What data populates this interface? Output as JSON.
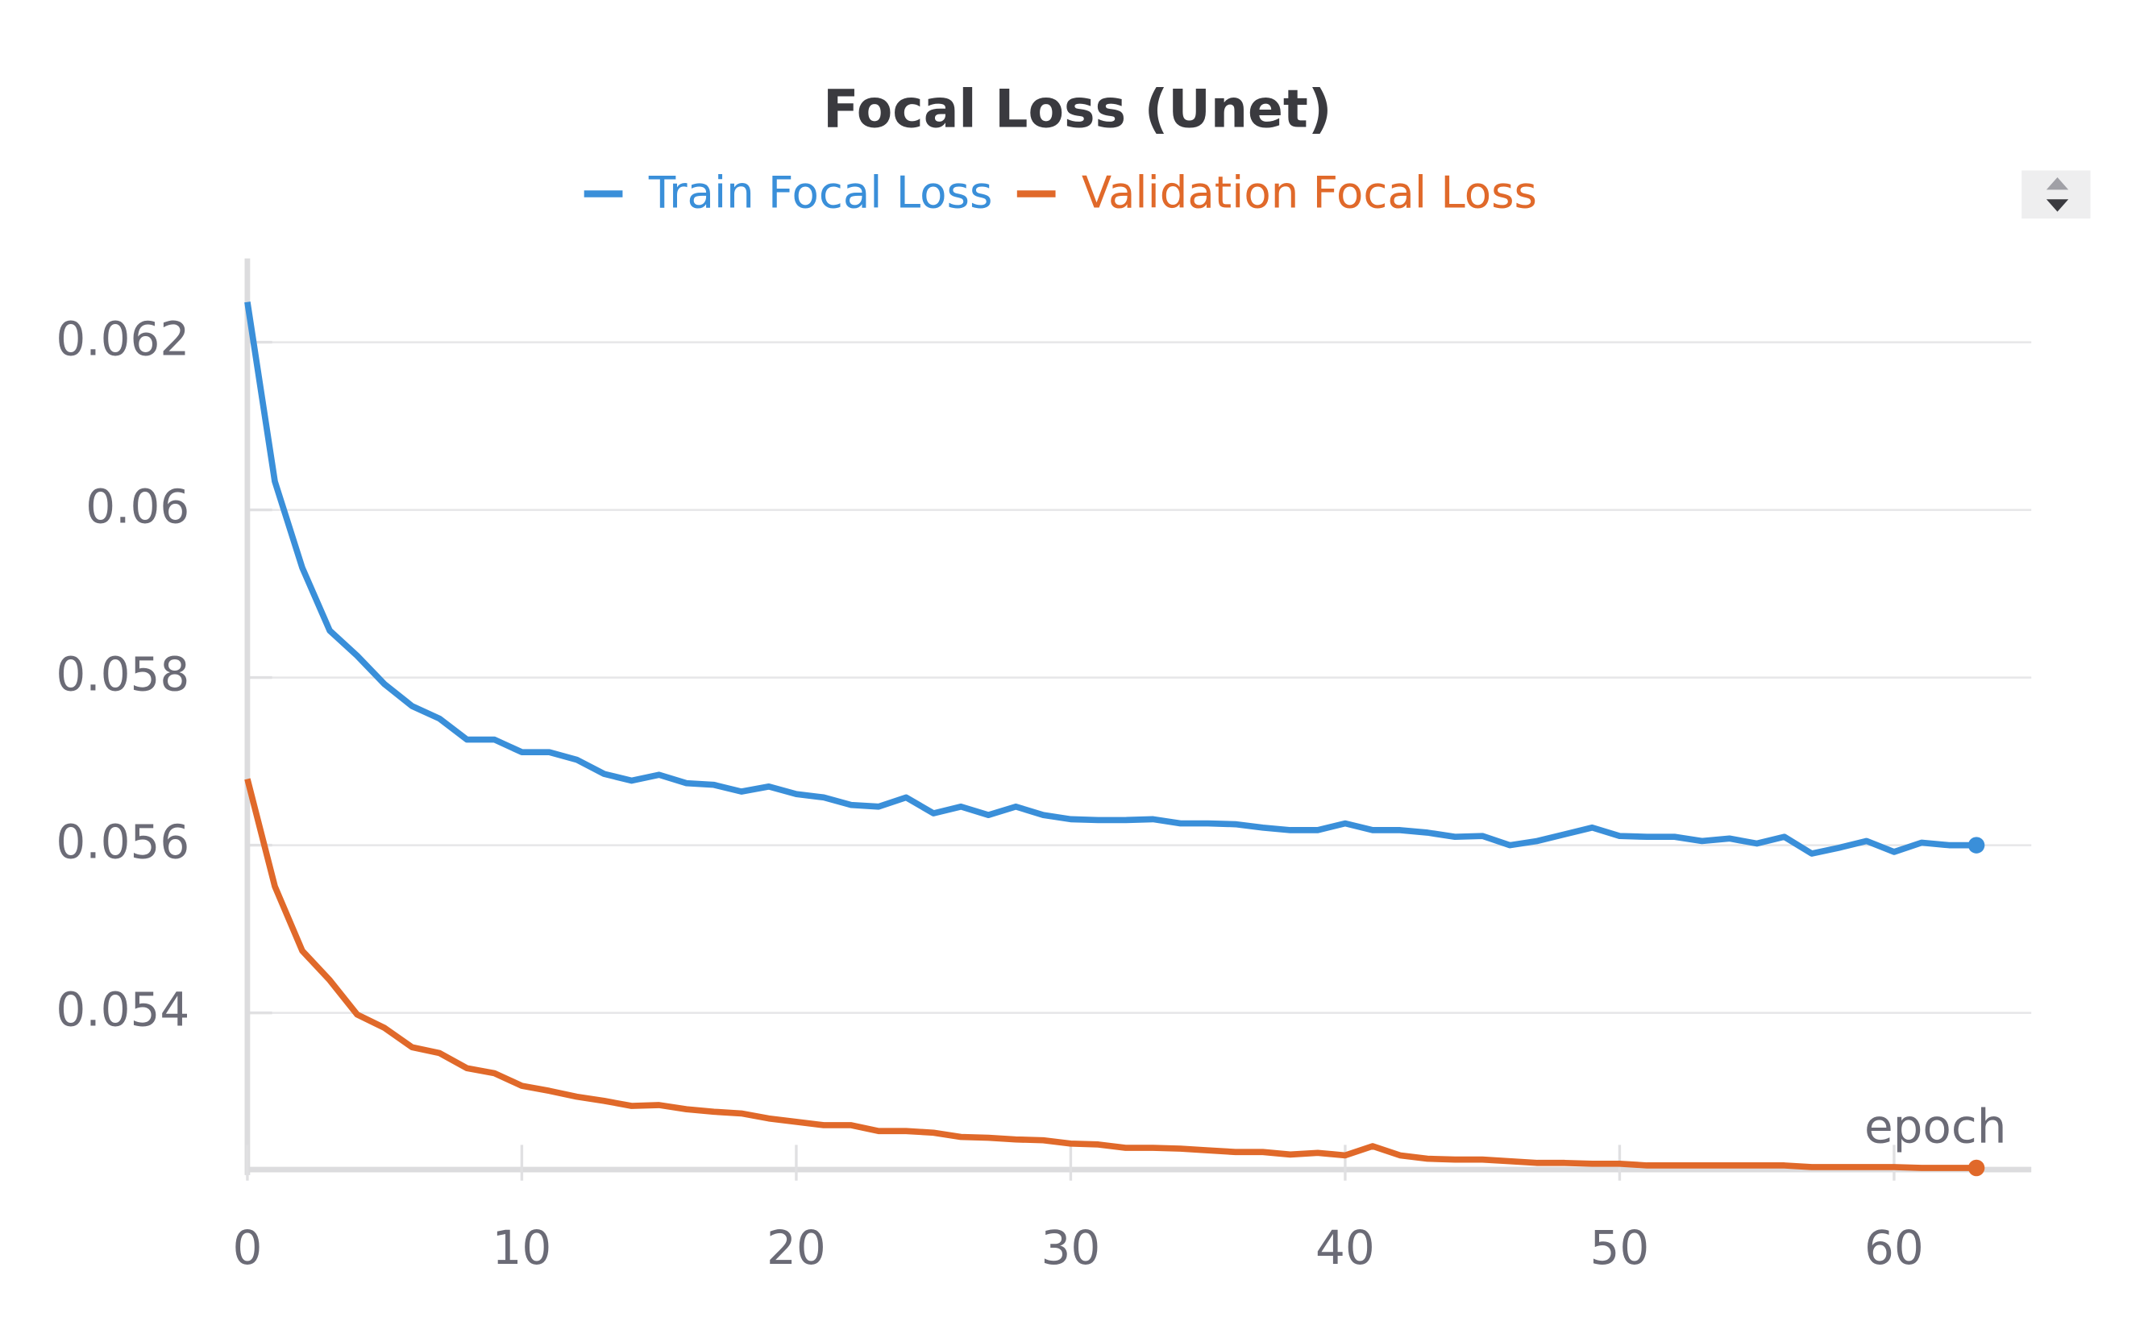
{
  "chart_data": {
    "type": "line",
    "title": "Focal Loss (Unet)",
    "x_label": "epoch",
    "x": [
      0,
      1,
      2,
      3,
      4,
      5,
      6,
      7,
      8,
      9,
      10,
      11,
      12,
      13,
      14,
      15,
      16,
      17,
      18,
      19,
      20,
      21,
      22,
      23,
      24,
      25,
      26,
      27,
      28,
      29,
      30,
      31,
      32,
      33,
      34,
      35,
      36,
      37,
      38,
      39,
      40,
      41,
      42,
      43,
      44,
      45,
      46,
      47,
      48,
      49,
      50,
      51,
      52,
      53,
      54,
      55,
      56,
      57,
      58,
      59,
      60,
      61,
      62,
      63
    ],
    "series": [
      {
        "name": "Train Focal Loss",
        "color": "#3a8fd9",
        "values": [
          0.06248,
          0.06034,
          0.05931,
          0.05856,
          0.05826,
          0.05792,
          0.05766,
          0.05751,
          0.05726,
          0.05726,
          0.05711,
          0.05711,
          0.05702,
          0.05685,
          0.05677,
          0.05684,
          0.05674,
          0.05672,
          0.05664,
          0.0567,
          0.05661,
          0.05657,
          0.05648,
          0.05646,
          0.05657,
          0.05638,
          0.05646,
          0.05636,
          0.05646,
          0.05636,
          0.05631,
          0.0563,
          0.0563,
          0.05631,
          0.05626,
          0.05626,
          0.05625,
          0.05621,
          0.05618,
          0.05618,
          0.05626,
          0.05618,
          0.05618,
          0.05615,
          0.0561,
          0.05611,
          0.056,
          0.05605,
          0.05613,
          0.05621,
          0.05611,
          0.0561,
          0.0561,
          0.05605,
          0.05608,
          0.05602,
          0.0561,
          0.0559,
          0.05597,
          0.05605,
          0.05592,
          0.05603,
          0.056,
          0.056
        ]
      },
      {
        "name": "Validation Focal Loss",
        "color": "#e0692a",
        "values": [
          0.05679,
          0.05551,
          0.05474,
          0.05439,
          0.05398,
          0.05382,
          0.05359,
          0.05352,
          0.05334,
          0.05328,
          0.05313,
          0.05307,
          0.053,
          0.05295,
          0.05289,
          0.0529,
          0.05285,
          0.05282,
          0.0528,
          0.05274,
          0.0527,
          0.05266,
          0.05266,
          0.05259,
          0.05259,
          0.05257,
          0.05252,
          0.05251,
          0.05249,
          0.05248,
          0.05244,
          0.05243,
          0.05239,
          0.05239,
          0.05238,
          0.05236,
          0.05234,
          0.05234,
          0.05231,
          0.05233,
          0.0523,
          0.05241,
          0.0523,
          0.05226,
          0.05225,
          0.05225,
          0.05223,
          0.05221,
          0.05221,
          0.0522,
          0.0522,
          0.05218,
          0.05218,
          0.05218,
          0.05218,
          0.05218,
          0.05218,
          0.05216,
          0.05216,
          0.05216,
          0.05216,
          0.05215,
          0.05215,
          0.05215
        ]
      }
    ],
    "xlim": [
      0,
      65
    ],
    "ylim": [
      0.05213,
      0.063
    ],
    "xticks": [
      0,
      10,
      20,
      30,
      40,
      50,
      60
    ],
    "yticks": [
      0.054,
      0.056,
      0.058,
      0.06,
      0.062
    ],
    "grid": true
  }
}
